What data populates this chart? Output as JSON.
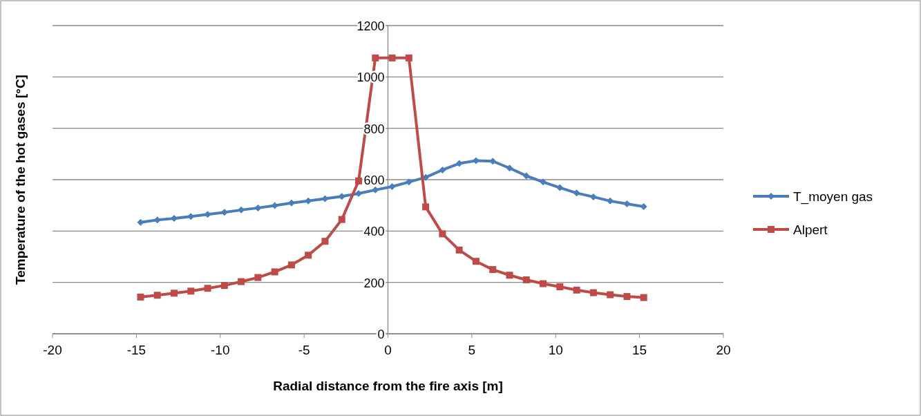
{
  "chart_data": {
    "type": "line",
    "xlabel": "Radial distance from the fire axis [m]",
    "ylabel": "Temperature of the hot gases [°C]",
    "x": [
      -14.75,
      -13.75,
      -12.75,
      -11.75,
      -10.75,
      -9.75,
      -8.75,
      -7.75,
      -6.75,
      -5.75,
      -4.75,
      -3.75,
      -2.75,
      -1.75,
      -0.75,
      0.25,
      1.25,
      2.25,
      3.25,
      4.25,
      5.25,
      6.25,
      7.25,
      8.25,
      9.25,
      10.25,
      11.25,
      12.25,
      13.25,
      14.25,
      15.25
    ],
    "series": [
      {
        "name": "T_moyen gas",
        "color": "#4a7ebb",
        "marker": "diamond",
        "values": [
          434,
          443,
          449,
          457,
          465,
          473,
          482,
          490,
          499,
          509,
          517,
          526,
          535,
          546,
          560,
          573,
          591,
          609,
          638,
          663,
          674,
          672,
          645,
          615,
          591,
          569,
          548,
          533,
          517,
          506,
          495
        ]
      },
      {
        "name": "Alpert",
        "color": "#be4b48",
        "marker": "square",
        "values": [
          143,
          150,
          158,
          166,
          177,
          188,
          203,
          219,
          241,
          268,
          306,
          360,
          445,
          595,
          1074,
          1074,
          1074,
          494,
          389,
          326,
          282,
          250,
          228,
          210,
          195,
          183,
          170,
          160,
          152,
          145,
          141
        ]
      }
    ],
    "xlim": [
      -20,
      20
    ],
    "xticks": [
      -20,
      -15,
      -10,
      -5,
      0,
      5,
      10,
      15,
      20
    ],
    "ylim": [
      0,
      1200
    ],
    "yticks": [
      0,
      200,
      400,
      600,
      800,
      1000,
      1200
    ],
    "grid": "y",
    "legend": "right",
    "line_style": "solid"
  }
}
